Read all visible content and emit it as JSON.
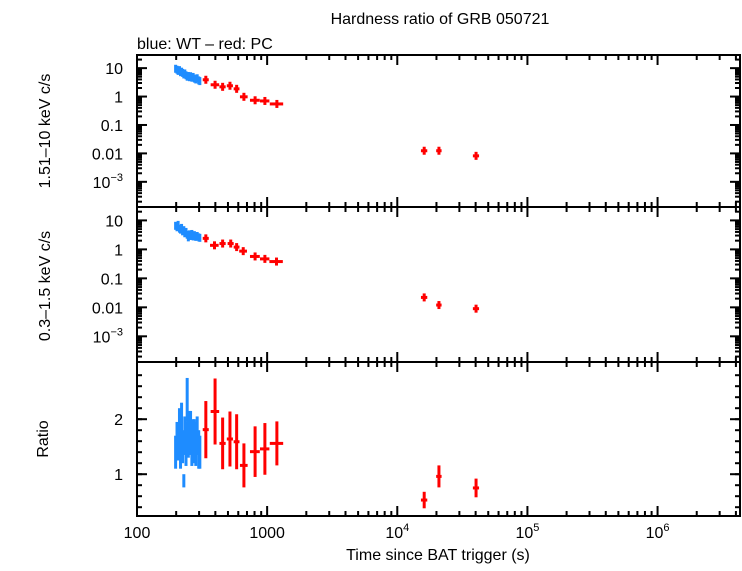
{
  "chart_data": {
    "type": "scatter",
    "title": "Hardness ratio of GRB 050721",
    "subtitle": "blue: WT – red: PC",
    "xlabel": "Time since BAT trigger (s)",
    "xscale": "log",
    "xlim": [
      100,
      4300000
    ],
    "xticks": [
      {
        "v": 100,
        "label": "100"
      },
      {
        "v": 1000,
        "label": "1000"
      },
      {
        "v": 10000,
        "label": "10",
        "exp": "4"
      },
      {
        "v": 100000,
        "label": "10",
        "exp": "5"
      },
      {
        "v": 1000000,
        "label": "10",
        "exp": "6"
      }
    ],
    "colors": {
      "WT": "#1e8cff",
      "PC": "#ff0000"
    },
    "panels": [
      {
        "ylabel": "1.51–10 keV c/s",
        "yscale": "log",
        "ylim": [
          0.00013,
          29
        ],
        "yticks": [
          {
            "v": 10,
            "label": "10"
          },
          {
            "v": 1,
            "label": "1"
          },
          {
            "v": 0.1,
            "label": "0.1"
          },
          {
            "v": 0.01,
            "label": "0.01"
          },
          {
            "v": 0.001,
            "label": "10",
            "exp": "−3"
          }
        ],
        "series": [
          {
            "mode": "WT",
            "x": [
              198,
              203,
              207,
              212,
              216,
              220,
              224,
              229,
              233,
              238,
              243,
              248,
              253,
              258,
              264,
              270,
              276,
              283,
              290,
              298,
              304
            ],
            "y": [
              9.5,
              8.8,
              8.0,
              8.5,
              7.2,
              7.5,
              6.8,
              6.0,
              6.5,
              5.6,
              5.0,
              5.3,
              4.8,
              5.2,
              4.6,
              4.9,
              4.3,
              4.0,
              4.4,
              3.7,
              3.5
            ]
          },
          {
            "mode": "PC",
            "x": [
              338,
              398,
              455,
              518,
              583,
              663,
              808,
              961,
              1188,
              16100,
              20900,
              40300
            ],
            "y": [
              3.9,
              2.6,
              2.2,
              2.4,
              1.87,
              0.98,
              0.74,
              0.7,
              0.55,
              0.0124,
              0.0124,
              0.0082
            ],
            "xerr": [
              18,
              30,
              25,
              28,
              30,
              45,
              70,
              80,
              140,
              900,
              1000,
              2200
            ]
          }
        ]
      },
      {
        "ylabel": "0.3–1.5 keV c/s",
        "yscale": "log",
        "ylim": [
          0.00013,
          29
        ],
        "yticks": [
          {
            "v": 10,
            "label": "10"
          },
          {
            "v": 1,
            "label": "1"
          },
          {
            "v": 0.1,
            "label": "0.1"
          },
          {
            "v": 0.01,
            "label": "0.01"
          },
          {
            "v": 0.001,
            "label": "10",
            "exp": "−3"
          }
        ],
        "series": [
          {
            "mode": "WT",
            "x": [
              198,
              203,
              207,
              212,
              216,
              220,
              224,
              229,
              233,
              238,
              243,
              248,
              253,
              258,
              264,
              270,
              276,
              283,
              290,
              298,
              304
            ],
            "y": [
              6.5,
              5.8,
              7.0,
              5.2,
              4.8,
              5.5,
              4.2,
              4.6,
              3.6,
              4.0,
              3.2,
              2.6,
              3.3,
              2.9,
              3.4,
              2.8,
              3.1,
              2.7,
              2.9,
              2.6,
              2.5
            ]
          },
          {
            "mode": "PC",
            "x": [
              338,
              394,
              455,
              525,
              583,
              655,
              808,
              961,
              1180,
              16100,
              20900,
              40300
            ],
            "y": [
              2.4,
              1.38,
              1.59,
              1.59,
              1.2,
              0.87,
              0.57,
              0.47,
              0.38,
              0.022,
              0.012,
              0.009
            ],
            "xerr": [
              18,
              30,
              25,
              28,
              30,
              45,
              70,
              80,
              140,
              900,
              1000,
              2200
            ]
          }
        ]
      },
      {
        "ylabel": "Ratio",
        "yscale": "linear",
        "ylim": [
          0.24,
          3.04
        ],
        "yticks": [
          {
            "v": 2,
            "label": "2"
          },
          {
            "v": 1,
            "label": "1"
          }
        ],
        "series": [
          {
            "mode": "WT",
            "x": [
              198,
              203,
              207,
              212,
              216,
              220,
              224,
              229,
              233,
              238,
              243,
              248,
              253,
              258,
              264,
              270,
              276,
              283,
              290,
              298,
              304
            ],
            "y": [
              1.4,
              1.6,
              1.55,
              1.8,
              1.45,
              1.9,
              1.5,
              0.88,
              1.7,
              1.55,
              2.35,
              1.65,
              1.75,
              1.8,
              1.5,
              1.6,
              1.65,
              1.55,
              1.7,
              1.45,
              1.4
            ],
            "yerr": [
              0.3,
              0.35,
              0.3,
              0.4,
              0.35,
              0.4,
              0.3,
              0.12,
              0.35,
              0.4,
              0.4,
              0.35,
              0.4,
              0.35,
              0.35,
              0.4,
              0.35,
              0.4,
              0.35,
              0.35,
              0.3
            ]
          },
          {
            "mode": "PC",
            "x": [
              338,
              398,
              455,
              518,
              583,
              663,
              808,
              961,
              1188,
              16100,
              20900,
              40300
            ],
            "y": [
              1.81,
              2.14,
              1.56,
              1.64,
              1.59,
              1.16,
              1.41,
              1.46,
              1.56,
              0.53,
              0.96,
              0.75
            ],
            "yerr": [
              0.52,
              0.6,
              0.47,
              0.5,
              0.5,
              0.4,
              0.46,
              0.47,
              0.4,
              0.15,
              0.2,
              0.17
            ],
            "xerr": [
              18,
              30,
              25,
              28,
              30,
              45,
              70,
              80,
              140,
              900,
              1000,
              2200
            ]
          }
        ]
      }
    ]
  }
}
